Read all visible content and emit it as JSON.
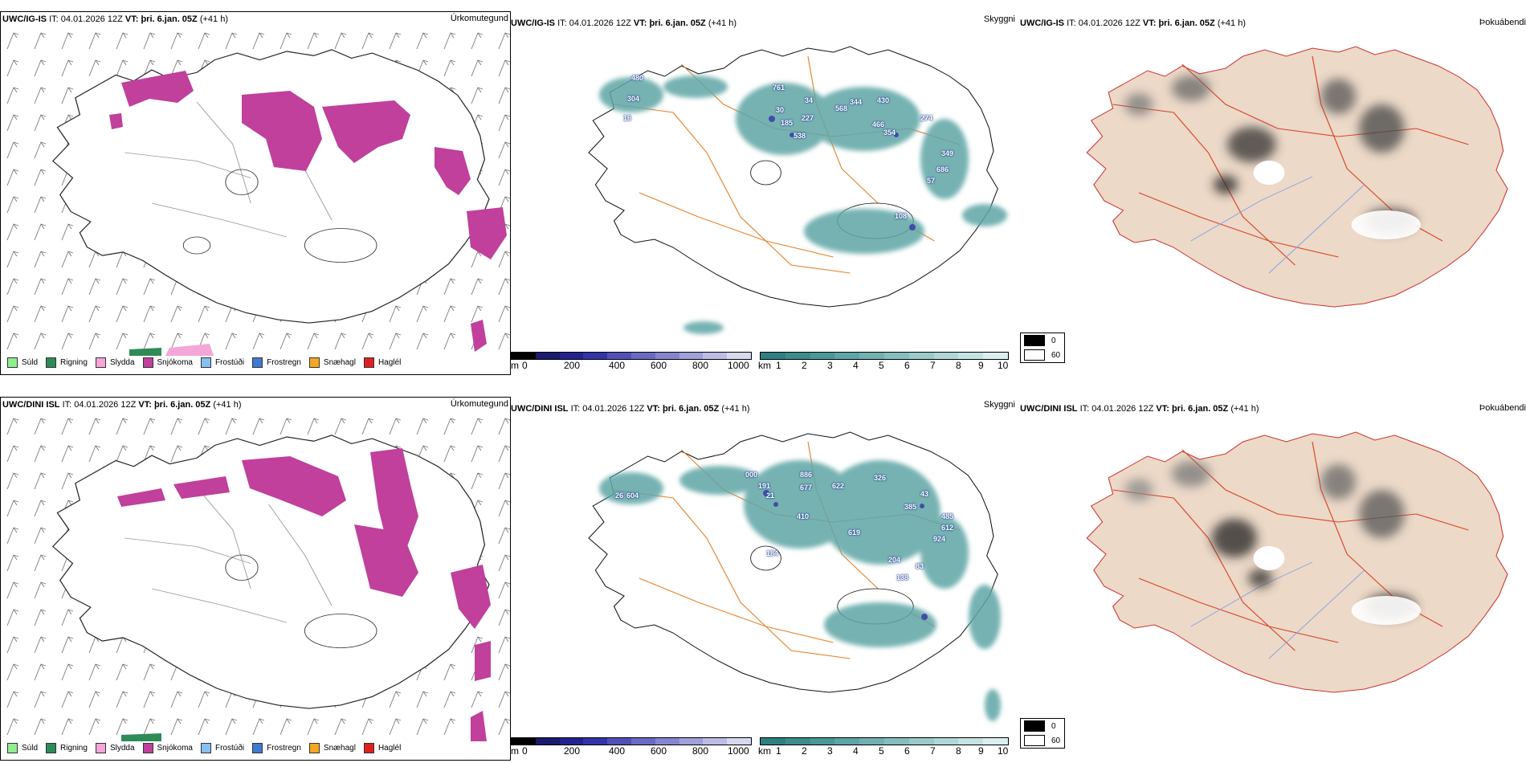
{
  "rows": [
    {
      "model": "UWC/IG-IS",
      "it_label": "IT:",
      "it_value": "04.01.2026 12Z",
      "vt_label": "VT:",
      "vt_value": "þri. 6.jan. 05Z",
      "lead": "(+41 h)",
      "ceiling_numbers": [
        "480",
        "304",
        "16",
        "761",
        "34",
        "30",
        "185",
        "227",
        "538",
        "568",
        "344",
        "430",
        "466",
        "354",
        "274",
        "349",
        "686",
        "57",
        "108"
      ]
    },
    {
      "model": "UWC/DINI ISL",
      "it_label": "IT:",
      "it_value": "04.01.2026 12Z",
      "vt_label": "VT:",
      "vt_value": "þri. 6.jan. 05Z",
      "lead": "(+41 h)",
      "ceiling_numbers": [
        "26",
        "604",
        "000",
        "886",
        "677",
        "191",
        "21",
        "622",
        "326",
        "43",
        "385",
        "410",
        "619",
        "485",
        "612",
        "924",
        "83",
        "204",
        "138",
        "184"
      ]
    }
  ],
  "titles": {
    "precip_type": "Úrkomutegund",
    "visibility": "Skyggni",
    "fog": "Þokuábendi"
  },
  "precip_legend": [
    {
      "label": "Súld",
      "color": "#90ee90"
    },
    {
      "label": "Rigning",
      "color": "#2e8b57"
    },
    {
      "label": "Slydda",
      "color": "#f4a6d8"
    },
    {
      "label": "Snjókoma",
      "color": "#c0409c"
    },
    {
      "label": "Frostúði",
      "color": "#87bff0"
    },
    {
      "label": "Frostregn",
      "color": "#3f7bd1"
    },
    {
      "label": "Snæhagl",
      "color": "#f5a623"
    },
    {
      "label": "Haglél",
      "color": "#e02020"
    }
  ],
  "ceiling_bar": {
    "unit": "m",
    "ticks": [
      "0",
      "200",
      "400",
      "600",
      "800",
      "1000"
    ],
    "colors": [
      "#000000",
      "#1a1a6e",
      "#23238f",
      "#3434a8",
      "#5050b8",
      "#6a6ac4",
      "#8585cf",
      "#a0a0da",
      "#bcbce6",
      "#d8d8f0"
    ]
  },
  "vis_bar": {
    "unit": "km",
    "ticks": [
      "1",
      "2",
      "3",
      "4",
      "5",
      "6",
      "7",
      "8",
      "9",
      "10"
    ],
    "colors": [
      "#2f8080",
      "#3d8c8c",
      "#4b9898",
      "#5ea5a5",
      "#72b1b1",
      "#86bebe",
      "#9bcaca",
      "#b0d7d7",
      "#c5e3e3",
      "#daefef"
    ]
  },
  "fog_legend": [
    {
      "label": "0",
      "color": "#000000"
    },
    {
      "label": "60",
      "color": "#ffffff"
    }
  ]
}
